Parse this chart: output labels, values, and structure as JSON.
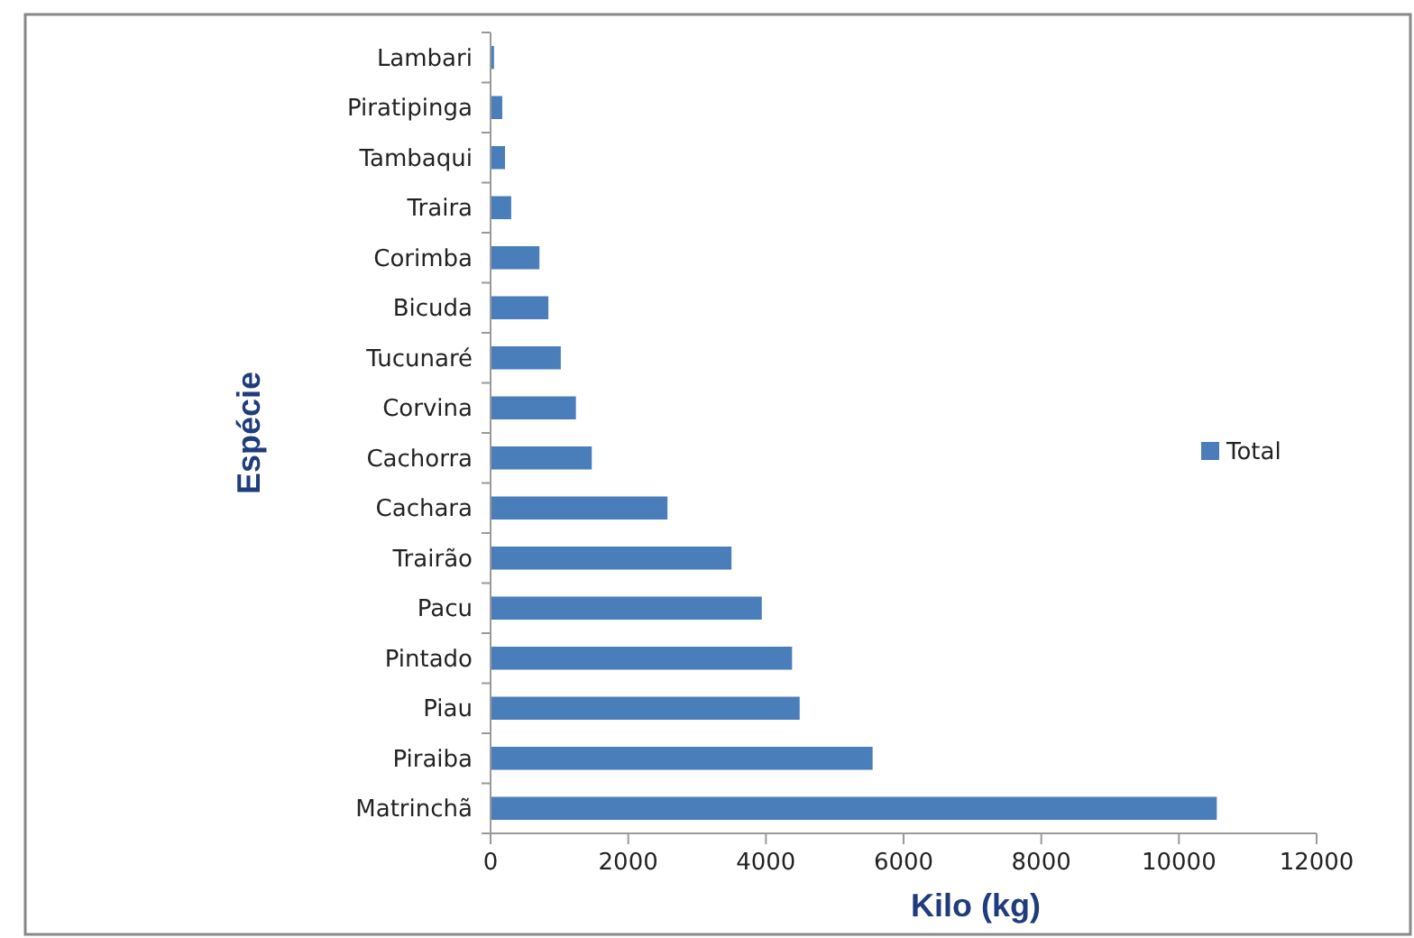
{
  "chart_data": {
    "type": "bar",
    "orientation": "horizontal",
    "xlabel": "Kilo (kg)",
    "ylabel": "Espécie",
    "categories": [
      "Lambari",
      "Piratipinga",
      "Tambaqui",
      "Traira",
      "Corimba",
      "Bicuda",
      "Tucunaré",
      "Corvina",
      "Cachorra",
      "Cachara",
      "Trairão",
      "Pacu",
      "Pintado",
      "Piau",
      "Piraiba",
      "Matrinchã"
    ],
    "series": [
      {
        "name": "Total",
        "color": "#4a7ebb",
        "values": [
          50,
          170,
          210,
          300,
          710,
          840,
          1020,
          1240,
          1470,
          2570,
          3500,
          3940,
          4380,
          4490,
          5550,
          10550
        ]
      }
    ],
    "xlim": [
      0,
      12000
    ],
    "xticks": [
      0,
      2000,
      4000,
      6000,
      8000,
      10000,
      12000
    ],
    "legend": "right"
  }
}
